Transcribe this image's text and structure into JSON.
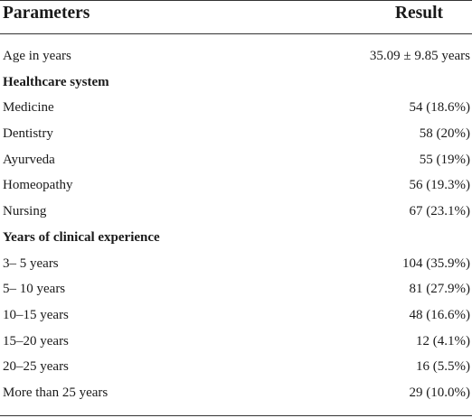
{
  "table": {
    "header": {
      "parameters": "Parameters",
      "result": "Result"
    },
    "rows": [
      {
        "label": "Age in years",
        "value": "35.09 ± 9.85 years",
        "type": "data"
      },
      {
        "label": "Healthcare system",
        "value": "",
        "type": "section"
      },
      {
        "label": "Medicine",
        "value": "54 (18.6%)",
        "type": "data"
      },
      {
        "label": "Dentistry",
        "value": "58 (20%)",
        "type": "data"
      },
      {
        "label": "Ayurveda",
        "value": "55 (19%)",
        "type": "data"
      },
      {
        "label": "Homeopathy",
        "value": "56 (19.3%)",
        "type": "data"
      },
      {
        "label": "Nursing",
        "value": "67 (23.1%)",
        "type": "data"
      },
      {
        "label": "Years of clinical experience",
        "value": "",
        "type": "section"
      },
      {
        "label": "3– 5 years",
        "value": "104 (35.9%)",
        "type": "data"
      },
      {
        "label": "5– 10 years",
        "value": "81 (27.9%)",
        "type": "data"
      },
      {
        "label": "10–15 years",
        "value": "48 (16.6%)",
        "type": "data"
      },
      {
        "label": "15–20 years",
        "value": "12 (4.1%)",
        "type": "data"
      },
      {
        "label": "20–25 years",
        "value": "16 (5.5%)",
        "type": "data"
      },
      {
        "label": "More than 25 years",
        "value": "29 (10.0%)",
        "type": "data"
      }
    ]
  }
}
